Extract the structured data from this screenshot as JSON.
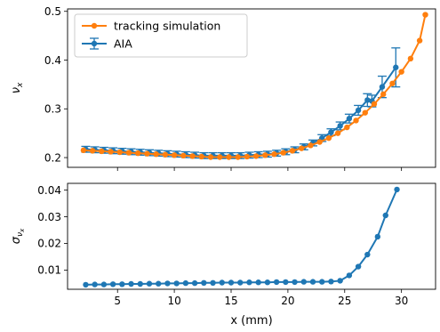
{
  "chart_data": [
    {
      "type": "line",
      "xlabel": "",
      "ylabel_main": "ν",
      "ylabel_sub": "x",
      "xlim": [
        0.6,
        33.0
      ],
      "ylim": [
        0.18,
        0.505
      ],
      "xticks": [
        5,
        10,
        15,
        20,
        25,
        30
      ],
      "show_xticklabels": false,
      "yticks": [
        0.2,
        0.3,
        0.4,
        0.5
      ],
      "ytick_labels": [
        "0.2",
        "0.3",
        "0.4",
        "0.5"
      ],
      "legend": {
        "placement": "top-left",
        "entries": [
          "tracking simulation",
          "AIA"
        ]
      },
      "colors": {
        "tracking": "#ff7f0e",
        "aia": "#1f77b4"
      },
      "series": [
        {
          "name": "tracking simulation",
          "color": "#ff7f0e",
          "x": [
            2,
            2.8,
            3.6,
            4.4,
            5.2,
            6,
            6.8,
            7.6,
            8.4,
            9.2,
            10,
            10.8,
            11.6,
            12.4,
            13.2,
            14,
            14.8,
            15.6,
            16.4,
            17.2,
            18,
            18.8,
            19.6,
            20.4,
            21.2,
            22,
            22.8,
            23.6,
            24.4,
            25.2,
            26,
            26.8,
            27.6,
            28.4,
            29.2,
            30,
            30.8,
            31.6,
            32.1
          ],
          "y": [
            0.215,
            0.214,
            0.213,
            0.212,
            0.211,
            0.21,
            0.209,
            0.208,
            0.207,
            0.206,
            0.205,
            0.204,
            0.203,
            0.202,
            0.201,
            0.201,
            0.201,
            0.201,
            0.202,
            0.203,
            0.205,
            0.207,
            0.21,
            0.214,
            0.219,
            0.225,
            0.232,
            0.24,
            0.25,
            0.262,
            0.276,
            0.292,
            0.31,
            0.33,
            0.352,
            0.376,
            0.403,
            0.44,
            0.493
          ]
        },
        {
          "name": "AIA",
          "color": "#1f77b4",
          "x": [
            2.2,
            3.0,
            3.8,
            4.6,
            5.4,
            6.2,
            7.0,
            7.8,
            8.6,
            9.4,
            10.2,
            11.0,
            11.8,
            12.6,
            13.4,
            14.2,
            15.0,
            15.8,
            16.6,
            17.4,
            18.2,
            19.0,
            19.8,
            20.6,
            21.4,
            22.2,
            23.0,
            23.8,
            24.6,
            25.4,
            26.2,
            27.0,
            27.4,
            28.3,
            29.5
          ],
          "y": [
            0.217,
            0.216,
            0.215,
            0.214,
            0.213,
            0.212,
            0.211,
            0.21,
            0.209,
            0.208,
            0.207,
            0.206,
            0.205,
            0.204,
            0.204,
            0.204,
            0.204,
            0.204,
            0.205,
            0.206,
            0.207,
            0.209,
            0.212,
            0.216,
            0.222,
            0.23,
            0.24,
            0.252,
            0.265,
            0.28,
            0.297,
            0.318,
            0.316,
            0.345,
            0.385
          ],
          "err": [
            0.006,
            0.006,
            0.006,
            0.006,
            0.006,
            0.006,
            0.006,
            0.006,
            0.006,
            0.006,
            0.006,
            0.006,
            0.006,
            0.006,
            0.006,
            0.006,
            0.006,
            0.006,
            0.006,
            0.006,
            0.006,
            0.006,
            0.006,
            0.006,
            0.006,
            0.006,
            0.007,
            0.007,
            0.008,
            0.009,
            0.01,
            0.013,
            0.012,
            0.022,
            0.04
          ]
        }
      ]
    },
    {
      "type": "line",
      "xlabel": "x (mm)",
      "ylabel_main": "σ",
      "ylabel_sub": "ν",
      "ylabel_subsub": "x",
      "xlim": [
        0.6,
        33.0
      ],
      "ylim": [
        0.0028,
        0.0425
      ],
      "xticks": [
        5,
        10,
        15,
        20,
        25,
        30
      ],
      "xtick_labels": [
        "5",
        "10",
        "15",
        "20",
        "25",
        "30"
      ],
      "show_xticklabels": true,
      "yticks": [
        0.01,
        0.02,
        0.03,
        0.04
      ],
      "ytick_labels": [
        "0.01",
        "0.02",
        "0.03",
        "0.04"
      ],
      "series": [
        {
          "color": "#1f77b4",
          "x": [
            2.2,
            3.0,
            3.8,
            4.6,
            5.4,
            6.2,
            7.0,
            7.8,
            8.6,
            9.4,
            10.2,
            11.0,
            11.8,
            12.6,
            13.4,
            14.2,
            15.0,
            15.8,
            16.6,
            17.4,
            18.2,
            19.0,
            19.8,
            20.6,
            21.4,
            22.2,
            23.0,
            23.8,
            24.6,
            25.4,
            26.2,
            27.0,
            27.9,
            28.6,
            29.6
          ],
          "y": [
            0.0045,
            0.0046,
            0.0046,
            0.0047,
            0.0047,
            0.0048,
            0.0048,
            0.0049,
            0.0049,
            0.005,
            0.005,
            0.0051,
            0.0051,
            0.0052,
            0.0052,
            0.0053,
            0.0053,
            0.0053,
            0.0054,
            0.0054,
            0.0054,
            0.0055,
            0.0055,
            0.0055,
            0.0056,
            0.0056,
            0.0056,
            0.0057,
            0.006,
            0.008,
            0.0113,
            0.0158,
            0.0225,
            0.0305,
            0.0402
          ]
        }
      ]
    }
  ]
}
